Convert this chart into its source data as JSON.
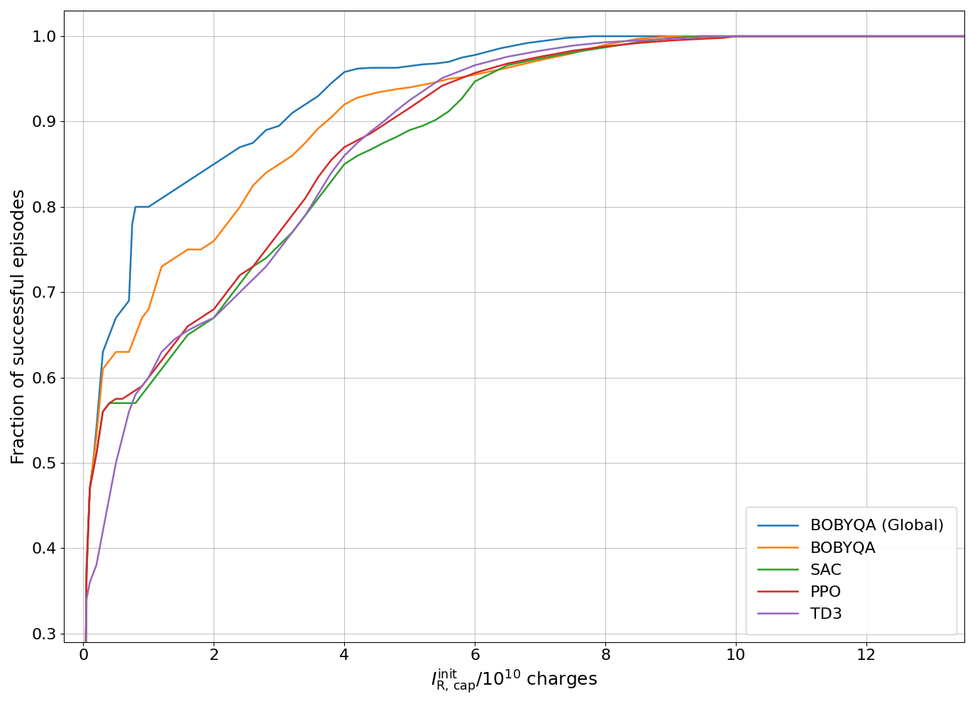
{
  "xlabel": "$I_{\\mathrm{R,\\, cap}}^{\\mathrm{init}}/10^{10}$ charges",
  "ylabel": "Fraction of successful episodes",
  "xlim": [
    -0.3,
    13.5
  ],
  "ylim": [
    0.29,
    1.03
  ],
  "yticks": [
    0.3,
    0.4,
    0.5,
    0.6,
    0.7,
    0.8,
    0.9,
    1.0
  ],
  "xticks": [
    0,
    2,
    4,
    6,
    8,
    10,
    12
  ],
  "series": [
    {
      "label": "BOBYQA (Global)",
      "color": "#1f77b4",
      "x": [
        0.0,
        0.05,
        0.1,
        0.15,
        0.2,
        0.3,
        0.4,
        0.5,
        0.6,
        0.7,
        0.75,
        0.8,
        0.9,
        1.0,
        1.2,
        1.4,
        1.6,
        1.8,
        2.0,
        2.2,
        2.4,
        2.6,
        2.8,
        3.0,
        3.2,
        3.4,
        3.6,
        3.8,
        4.0,
        4.2,
        4.4,
        4.6,
        4.8,
        5.0,
        5.2,
        5.4,
        5.6,
        5.8,
        6.0,
        6.2,
        6.4,
        6.6,
        6.8,
        7.0,
        7.2,
        7.4,
        7.6,
        7.8,
        8.0,
        8.5,
        9.0,
        9.5,
        10.0,
        13.5
      ],
      "y": [
        0.0,
        0.38,
        0.47,
        0.5,
        0.54,
        0.63,
        0.65,
        0.67,
        0.68,
        0.69,
        0.78,
        0.8,
        0.8,
        0.8,
        0.81,
        0.82,
        0.83,
        0.84,
        0.85,
        0.86,
        0.87,
        0.875,
        0.89,
        0.895,
        0.91,
        0.92,
        0.93,
        0.945,
        0.958,
        0.962,
        0.963,
        0.963,
        0.963,
        0.965,
        0.967,
        0.968,
        0.97,
        0.975,
        0.978,
        0.982,
        0.986,
        0.989,
        0.992,
        0.994,
        0.996,
        0.998,
        0.999,
        1.0,
        1.0,
        1.0,
        1.0,
        1.0,
        1.0,
        1.0
      ]
    },
    {
      "label": "BOBYQA",
      "color": "#ff7f0e",
      "x": [
        0.0,
        0.05,
        0.1,
        0.15,
        0.2,
        0.3,
        0.4,
        0.5,
        0.6,
        0.7,
        0.8,
        0.9,
        1.0,
        1.2,
        1.4,
        1.6,
        1.8,
        2.0,
        2.2,
        2.4,
        2.6,
        2.8,
        3.0,
        3.2,
        3.4,
        3.6,
        3.8,
        4.0,
        4.2,
        4.5,
        4.8,
        5.0,
        5.2,
        5.4,
        5.6,
        5.8,
        6.0,
        6.5,
        7.0,
        7.5,
        8.0,
        8.5,
        9.0,
        9.5,
        10.0,
        13.5
      ],
      "y": [
        0.0,
        0.37,
        0.47,
        0.5,
        0.53,
        0.61,
        0.62,
        0.63,
        0.63,
        0.63,
        0.65,
        0.67,
        0.68,
        0.73,
        0.74,
        0.75,
        0.75,
        0.76,
        0.78,
        0.8,
        0.825,
        0.84,
        0.85,
        0.86,
        0.875,
        0.892,
        0.905,
        0.92,
        0.928,
        0.934,
        0.938,
        0.94,
        0.943,
        0.946,
        0.95,
        0.952,
        0.955,
        0.963,
        0.972,
        0.98,
        0.99,
        0.997,
        1.0,
        1.0,
        1.0,
        1.0
      ]
    },
    {
      "label": "SAC",
      "color": "#2ca02c",
      "x": [
        0.0,
        0.05,
        0.1,
        0.15,
        0.2,
        0.3,
        0.4,
        0.5,
        0.6,
        0.7,
        0.8,
        0.9,
        1.0,
        1.2,
        1.4,
        1.6,
        1.8,
        2.0,
        2.2,
        2.4,
        2.6,
        2.8,
        3.0,
        3.2,
        3.4,
        3.6,
        3.8,
        4.0,
        4.2,
        4.4,
        4.6,
        4.8,
        5.0,
        5.2,
        5.4,
        5.6,
        5.8,
        6.0,
        6.5,
        7.0,
        7.5,
        8.0,
        8.5,
        9.0,
        9.5,
        10.0,
        13.5
      ],
      "y": [
        0.0,
        0.37,
        0.47,
        0.49,
        0.51,
        0.56,
        0.57,
        0.57,
        0.57,
        0.57,
        0.57,
        0.58,
        0.59,
        0.61,
        0.63,
        0.65,
        0.66,
        0.67,
        0.69,
        0.71,
        0.73,
        0.74,
        0.755,
        0.77,
        0.79,
        0.81,
        0.83,
        0.85,
        0.86,
        0.867,
        0.875,
        0.882,
        0.89,
        0.895,
        0.902,
        0.912,
        0.927,
        0.947,
        0.966,
        0.974,
        0.981,
        0.987,
        0.993,
        0.998,
        1.0,
        1.0,
        1.0
      ]
    },
    {
      "label": "PPO",
      "color": "#d62728",
      "x": [
        0.0,
        0.05,
        0.1,
        0.15,
        0.2,
        0.3,
        0.4,
        0.5,
        0.6,
        0.7,
        0.8,
        0.9,
        1.0,
        1.2,
        1.4,
        1.6,
        1.8,
        2.0,
        2.2,
        2.4,
        2.6,
        2.8,
        3.0,
        3.2,
        3.4,
        3.6,
        3.8,
        4.0,
        4.2,
        4.4,
        4.6,
        4.8,
        5.0,
        5.5,
        6.0,
        6.5,
        7.0,
        7.5,
        8.0,
        8.5,
        9.0,
        9.5,
        9.8,
        10.0,
        13.5
      ],
      "y": [
        0.0,
        0.37,
        0.47,
        0.49,
        0.51,
        0.56,
        0.57,
        0.575,
        0.575,
        0.58,
        0.585,
        0.59,
        0.6,
        0.62,
        0.64,
        0.66,
        0.67,
        0.68,
        0.7,
        0.72,
        0.73,
        0.75,
        0.77,
        0.79,
        0.81,
        0.835,
        0.855,
        0.87,
        0.878,
        0.886,
        0.896,
        0.906,
        0.916,
        0.942,
        0.957,
        0.968,
        0.976,
        0.983,
        0.988,
        0.992,
        0.995,
        0.997,
        0.998,
        1.0,
        1.0
      ]
    },
    {
      "label": "TD3",
      "color": "#9467bd",
      "x": [
        0.0,
        0.05,
        0.1,
        0.15,
        0.2,
        0.3,
        0.4,
        0.5,
        0.6,
        0.7,
        0.8,
        0.9,
        1.0,
        1.2,
        1.4,
        1.6,
        1.8,
        2.0,
        2.2,
        2.4,
        2.6,
        2.8,
        3.0,
        3.2,
        3.4,
        3.6,
        3.8,
        4.0,
        4.2,
        4.4,
        4.6,
        4.8,
        5.0,
        5.5,
        6.0,
        6.5,
        7.0,
        7.5,
        8.0,
        8.5,
        9.0,
        9.5,
        10.0,
        13.5
      ],
      "y": [
        0.0,
        0.34,
        0.36,
        0.37,
        0.38,
        0.42,
        0.46,
        0.5,
        0.53,
        0.56,
        0.58,
        0.59,
        0.6,
        0.63,
        0.645,
        0.655,
        0.663,
        0.67,
        0.685,
        0.7,
        0.715,
        0.73,
        0.75,
        0.77,
        0.79,
        0.815,
        0.84,
        0.86,
        0.875,
        0.888,
        0.9,
        0.913,
        0.925,
        0.951,
        0.966,
        0.976,
        0.983,
        0.989,
        0.993,
        0.995,
        0.997,
        0.999,
        1.0,
        1.0
      ]
    }
  ],
  "legend_loc": "lower right",
  "grid": true,
  "linewidth": 1.8,
  "figsize": [
    13.74,
    9.96
  ],
  "dpi": 100
}
